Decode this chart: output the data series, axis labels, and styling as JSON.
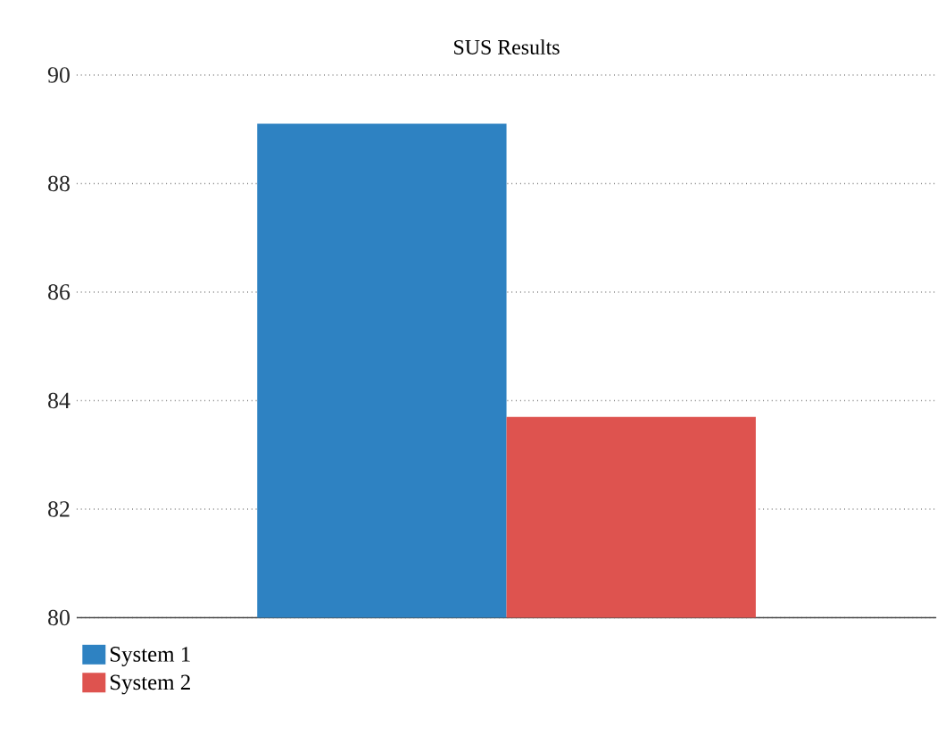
{
  "chart_data": {
    "type": "bar",
    "title": "SUS Results",
    "categories": [
      null
    ],
    "series": [
      {
        "name": "System 1",
        "color": "#2e82c2",
        "values": [
          89.1
        ]
      },
      {
        "name": "System 2",
        "color": "#de534f",
        "values": [
          83.7
        ]
      }
    ],
    "ylim": [
      80,
      90
    ],
    "yticks": [
      80,
      82,
      84,
      86,
      88,
      90
    ],
    "grid": "y",
    "legend": "bottom left"
  }
}
